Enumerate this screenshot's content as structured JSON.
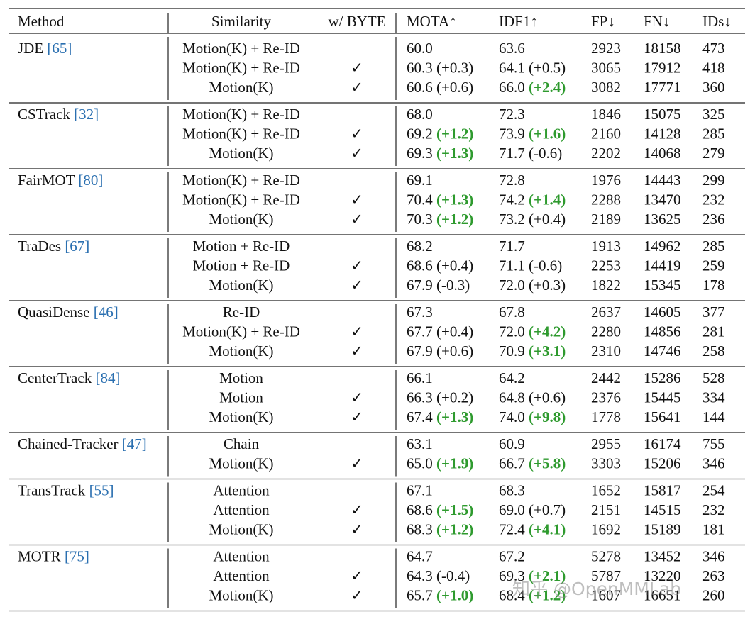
{
  "header": [
    "Method",
    "Similarity",
    "w/ BYTE",
    "MOTA↑",
    "IDF1↑",
    "FP↓",
    "FN↓",
    "IDs↓"
  ],
  "groups": [
    {
      "method": "JDE",
      "ref": "[65]",
      "rows": [
        {
          "similarity": "Motion(K) + Re-ID",
          "mota": "60.0",
          "idf1": "63.6",
          "fp": "2923",
          "fn": "18158",
          "ids": "473"
        },
        {
          "similarity": "Motion(K) + Re-ID",
          "byte": "✓",
          "mota": "60.3",
          "mota_delta": "(+0.3)",
          "idf1": "64.1",
          "idf1_delta": "(+0.5)",
          "fp": "3065",
          "fn": "17912",
          "ids": "418"
        },
        {
          "similarity": "Motion(K)",
          "byte": "✓",
          "mota": "60.6",
          "mota_delta": "(+0.6)",
          "idf1": "66.0",
          "idf1_delta": "(+2.4)",
          "idf1_bold": true,
          "fp": "3082",
          "fn": "17771",
          "ids": "360"
        }
      ]
    },
    {
      "method": "CSTrack",
      "ref": "[32]",
      "rows": [
        {
          "similarity": "Motion(K) + Re-ID",
          "mota": "68.0",
          "idf1": "72.3",
          "fp": "1846",
          "fn": "15075",
          "ids": "325"
        },
        {
          "similarity": "Motion(K) + Re-ID",
          "byte": "✓",
          "mota": "69.2",
          "mota_delta": "(+1.2)",
          "mota_bold": true,
          "idf1": "73.9",
          "idf1_delta": "(+1.6)",
          "idf1_bold": true,
          "fp": "2160",
          "fn": "14128",
          "ids": "285"
        },
        {
          "similarity": "Motion(K)",
          "byte": "✓",
          "mota": "69.3",
          "mota_delta": "(+1.3)",
          "mota_bold": true,
          "idf1": "71.7",
          "idf1_delta": "(-0.6)",
          "fp": "2202",
          "fn": "14068",
          "ids": "279"
        }
      ]
    },
    {
      "method": "FairMOT",
      "ref": "[80]",
      "rows": [
        {
          "similarity": "Motion(K) + Re-ID",
          "mota": "69.1",
          "idf1": "72.8",
          "fp": "1976",
          "fn": "14443",
          "ids": "299"
        },
        {
          "similarity": "Motion(K) + Re-ID",
          "byte": "✓",
          "mota": "70.4",
          "mota_delta": "(+1.3)",
          "mota_bold": true,
          "idf1": "74.2",
          "idf1_delta": "(+1.4)",
          "idf1_bold": true,
          "fp": "2288",
          "fn": "13470",
          "ids": "232"
        },
        {
          "similarity": "Motion(K)",
          "byte": "✓",
          "mota": "70.3",
          "mota_delta": "(+1.2)",
          "mota_bold": true,
          "idf1": "73.2",
          "idf1_delta": "(+0.4)",
          "fp": "2189",
          "fn": "13625",
          "ids": "236"
        }
      ]
    },
    {
      "method": "TraDes",
      "ref": "[67]",
      "rows": [
        {
          "similarity": "Motion + Re-ID",
          "mota": "68.2",
          "idf1": "71.7",
          "fp": "1913",
          "fn": "14962",
          "ids": "285"
        },
        {
          "similarity": "Motion + Re-ID",
          "byte": "✓",
          "mota": "68.6",
          "mota_delta": "(+0.4)",
          "idf1": "71.1",
          "idf1_delta": "(-0.6)",
          "fp": "2253",
          "fn": "14419",
          "ids": "259"
        },
        {
          "similarity": "Motion(K)",
          "byte": "✓",
          "mota": "67.9",
          "mota_delta": "(-0.3)",
          "idf1": "72.0",
          "idf1_delta": "(+0.3)",
          "fp": "1822",
          "fn": "15345",
          "ids": "178"
        }
      ]
    },
    {
      "method": "QuasiDense",
      "ref": "[46]",
      "rows": [
        {
          "similarity": "Re-ID",
          "mota": "67.3",
          "idf1": "67.8",
          "fp": "2637",
          "fn": "14605",
          "ids": "377"
        },
        {
          "similarity": "Motion(K) + Re-ID",
          "byte": "✓",
          "mota": "67.7",
          "mota_delta": "(+0.4)",
          "idf1": "72.0",
          "idf1_delta": "(+4.2)",
          "idf1_bold": true,
          "fp": "2280",
          "fn": "14856",
          "ids": "281"
        },
        {
          "similarity": "Motion(K)",
          "byte": "✓",
          "mota": "67.9",
          "mota_delta": "(+0.6)",
          "idf1": "70.9",
          "idf1_delta": "(+3.1)",
          "idf1_bold": true,
          "fp": "2310",
          "fn": "14746",
          "ids": "258"
        }
      ]
    },
    {
      "method": "CenterTrack",
      "ref": "[84]",
      "rows": [
        {
          "similarity": "Motion",
          "mota": "66.1",
          "idf1": "64.2",
          "fp": "2442",
          "fn": "15286",
          "ids": "528"
        },
        {
          "similarity": "Motion",
          "byte": "✓",
          "mota": "66.3",
          "mota_delta": "(+0.2)",
          "idf1": "64.8",
          "idf1_delta": "(+0.6)",
          "fp": "2376",
          "fn": "15445",
          "ids": "334"
        },
        {
          "similarity": "Motion(K)",
          "byte": "✓",
          "mota": "67.4",
          "mota_delta": "(+1.3)",
          "mota_bold": true,
          "idf1": "74.0",
          "idf1_delta": "(+9.8)",
          "idf1_bold": true,
          "fp": "1778",
          "fn": "15641",
          "ids": "144"
        }
      ]
    },
    {
      "method": "Chained-Tracker",
      "ref": "[47]",
      "rows": [
        {
          "similarity": "Chain",
          "mota": "63.1",
          "idf1": "60.9",
          "fp": "2955",
          "fn": "16174",
          "ids": "755"
        },
        {
          "similarity": "Motion(K)",
          "byte": "✓",
          "mota": "65.0",
          "mota_delta": "(+1.9)",
          "mota_bold": true,
          "idf1": "66.7",
          "idf1_delta": "(+5.8)",
          "idf1_bold": true,
          "fp": "3303",
          "fn": "15206",
          "ids": "346"
        }
      ]
    },
    {
      "method": "TransTrack",
      "ref": "[55]",
      "rows": [
        {
          "similarity": "Attention",
          "mota": "67.1",
          "idf1": "68.3",
          "fp": "1652",
          "fn": "15817",
          "ids": "254"
        },
        {
          "similarity": "Attention",
          "byte": "✓",
          "mota": "68.6",
          "mota_delta": "(+1.5)",
          "mota_bold": true,
          "idf1": "69.0",
          "idf1_delta": "(+0.7)",
          "fp": "2151",
          "fn": "14515",
          "ids": "232"
        },
        {
          "similarity": "Motion(K)",
          "byte": "✓",
          "mota": "68.3",
          "mota_delta": "(+1.2)",
          "mota_bold": true,
          "idf1": "72.4",
          "idf1_delta": "(+4.1)",
          "idf1_bold": true,
          "fp": "1692",
          "fn": "15189",
          "ids": "181"
        }
      ]
    },
    {
      "method": "MOTR",
      "ref": "[75]",
      "rows": [
        {
          "similarity": "Attention",
          "mota": "64.7",
          "idf1": "67.2",
          "fp": "5278",
          "fn": "13452",
          "ids": "346"
        },
        {
          "similarity": "Attention",
          "byte": "✓",
          "mota": "64.3",
          "mota_delta": "(-0.4)",
          "idf1": "69.3",
          "idf1_delta": "(+2.1)",
          "idf1_bold": true,
          "fp": "5787",
          "fn": "13220",
          "ids": "263"
        },
        {
          "similarity": "Motion(K)",
          "byte": "✓",
          "mota": "65.7",
          "mota_delta": "(+1.0)",
          "mota_bold": true,
          "idf1": "68.4",
          "idf1_delta": "(+1.2)",
          "idf1_bold": true,
          "fp": "1607",
          "fn": "16651",
          "ids": "260"
        }
      ]
    }
  ],
  "watermark": "知乎 @OpenMMLab"
}
